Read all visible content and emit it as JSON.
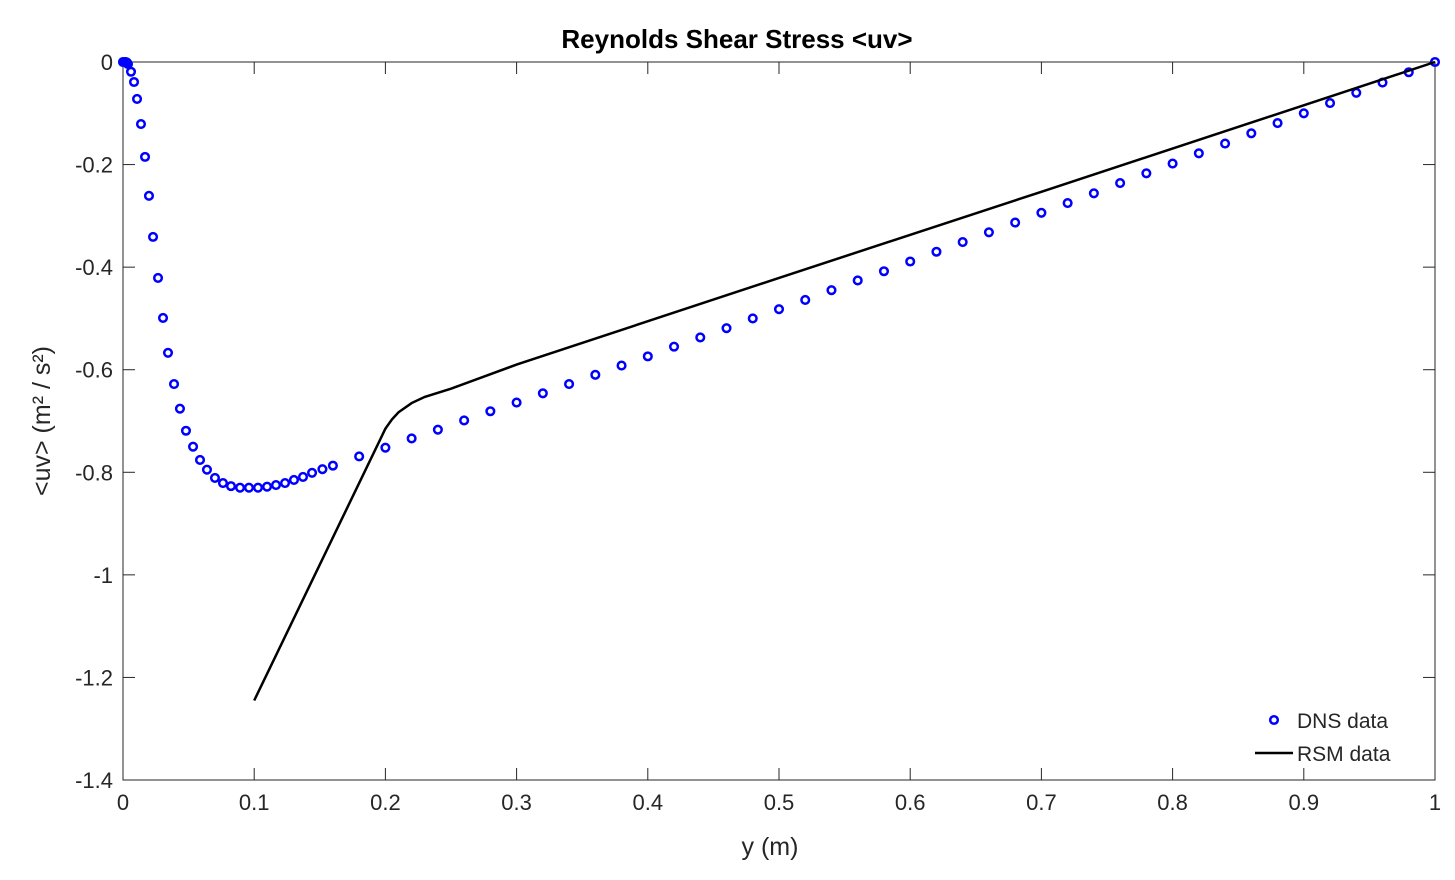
{
  "chart_data": {
    "type": "scatter-line",
    "title": "Reynolds Shear Stress <uv>",
    "xlabel": "y (m)",
    "ylabel": "<uv> (m² / s²)",
    "xlim": [
      0,
      1
    ],
    "ylim": [
      -1.4,
      0
    ],
    "xticks": [
      0,
      0.1,
      0.2,
      0.3,
      0.4,
      0.5,
      0.6,
      0.7,
      0.8,
      0.9,
      1
    ],
    "yticks": [
      -1.4,
      -1.2,
      -1,
      -0.8,
      -0.6,
      -0.4,
      -0.2,
      0
    ],
    "legend_position": "lower-right",
    "series": [
      {
        "name": "DNS data",
        "kind": "scatter",
        "color": "#0000ff",
        "x": [
          0,
          0.001,
          0.002,
          0.003,
          0.0038,
          0.0061,
          0.0084,
          0.0107,
          0.0137,
          0.0168,
          0.0198,
          0.0229,
          0.0267,
          0.0305,
          0.0343,
          0.0389,
          0.0434,
          0.048,
          0.0534,
          0.0587,
          0.064,
          0.0701,
          0.0762,
          0.0823,
          0.0892,
          0.096,
          0.1029,
          0.1098,
          0.1166,
          0.1235,
          0.1303,
          0.1372,
          0.1441,
          0.152,
          0.16,
          0.18,
          0.2,
          0.22,
          0.24,
          0.26,
          0.28,
          0.3,
          0.32,
          0.34,
          0.36,
          0.38,
          0.4,
          0.42,
          0.44,
          0.46,
          0.48,
          0.5,
          0.52,
          0.54,
          0.56,
          0.58,
          0.6,
          0.62,
          0.64,
          0.66,
          0.68,
          0.7,
          0.72,
          0.74,
          0.76,
          0.78,
          0.8,
          0.82,
          0.84,
          0.86,
          0.88,
          0.9,
          0.92,
          0.94,
          0.96,
          0.98,
          1
        ],
        "values": [
          0,
          0,
          0,
          -0.001,
          -0.004,
          -0.019,
          -0.039,
          -0.072,
          -0.121,
          -0.185,
          -0.261,
          -0.341,
          -0.421,
          -0.499,
          -0.567,
          -0.628,
          -0.676,
          -0.719,
          -0.75,
          -0.776,
          -0.795,
          -0.811,
          -0.821,
          -0.827,
          -0.83,
          -0.83,
          -0.83,
          -0.828,
          -0.825,
          -0.821,
          -0.815,
          -0.809,
          -0.801,
          -0.794,
          -0.787,
          -0.769,
          -0.752,
          -0.734,
          -0.717,
          -0.699,
          -0.681,
          -0.664,
          -0.646,
          -0.628,
          -0.61,
          -0.592,
          -0.574,
          -0.555,
          -0.537,
          -0.519,
          -0.5,
          -0.482,
          -0.464,
          -0.445,
          -0.426,
          -0.408,
          -0.389,
          -0.37,
          -0.351,
          -0.332,
          -0.313,
          -0.294,
          -0.275,
          -0.256,
          -0.236,
          -0.217,
          -0.198,
          -0.178,
          -0.159,
          -0.139,
          -0.119,
          -0.1,
          -0.08,
          -0.06,
          -0.04,
          -0.02,
          0
        ]
      },
      {
        "name": "RSM data",
        "kind": "line",
        "color": "#000000",
        "x": [
          0.1,
          0.2,
          0.205,
          0.21,
          0.22,
          0.23,
          0.25,
          0.3,
          0.5,
          0.7,
          1
        ],
        "values": [
          -1.245,
          -0.715,
          -0.697,
          -0.683,
          -0.665,
          -0.653,
          -0.637,
          -0.59,
          -0.421,
          -0.253,
          0
        ]
      }
    ]
  }
}
